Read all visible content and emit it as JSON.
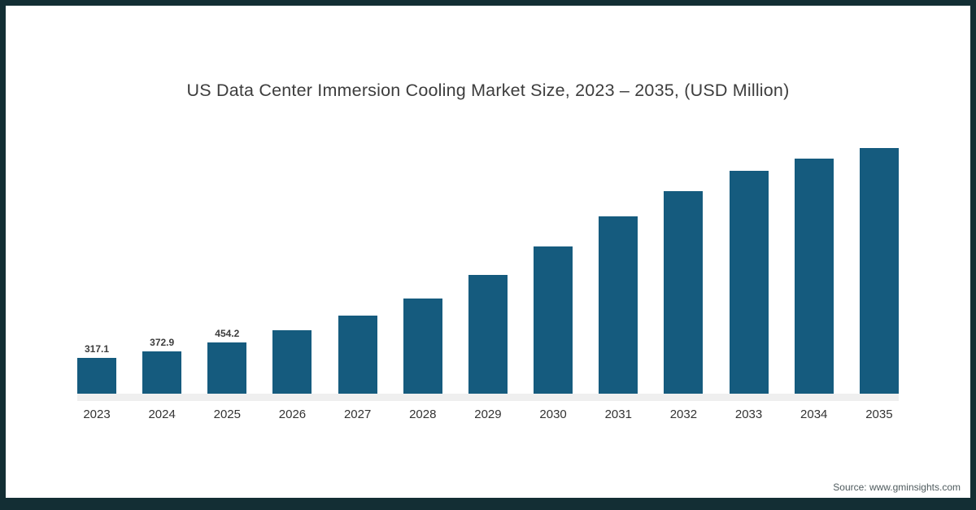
{
  "frame": {
    "border_color": "#132e34",
    "background": "#ffffff"
  },
  "title": "US Data Center Immersion Cooling Market Size, 2023 – 2035, (USD Million)",
  "source": "Source: www.gminsights.com",
  "chart_data": {
    "type": "bar",
    "title": "US Data Center Immersion Cooling Market Size, 2023 – 2035, (USD Million)",
    "categories": [
      "2023",
      "2024",
      "2025",
      "2026",
      "2027",
      "2028",
      "2029",
      "2030",
      "2031",
      "2032",
      "2033",
      "2034",
      "2035"
    ],
    "values": [
      317.1,
      372.9,
      454.2,
      560,
      690,
      845,
      1050,
      1300,
      1570,
      1790,
      1975,
      2080,
      2175
    ],
    "data_labels": [
      "317.1",
      "372.9",
      "454.2",
      "",
      "",
      "",
      "",
      "",
      "",
      "",
      "",
      "",
      ""
    ],
    "bar_color": "#155b7e",
    "xlabel": "",
    "ylabel": "",
    "ylim": [
      0,
      2300
    ],
    "grid": false,
    "legend_position": "none",
    "note": "Only the first three bars carry visible data labels; remaining values estimated from bar heights"
  }
}
